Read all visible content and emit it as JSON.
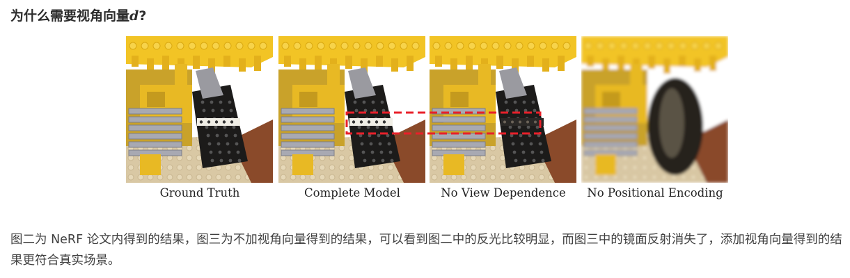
{
  "heading": {
    "text": "为什么需要视角向量",
    "variable": "d",
    "suffix": "?"
  },
  "figure": {
    "captions": [
      "Ground Truth",
      "Complete Model",
      "No View Dependence",
      "No Positional Encoding"
    ],
    "watermark": "",
    "highlight_color": "#e8202a"
  },
  "paragraph": {
    "text": "图二为 NeRF 论文内得到的结果，图三为不加视角向量得到的结果，可以看到图二中的反光比较明显，而图三中的镜面反射消失了，添加视角向量得到的结果更符合真实场景。"
  }
}
